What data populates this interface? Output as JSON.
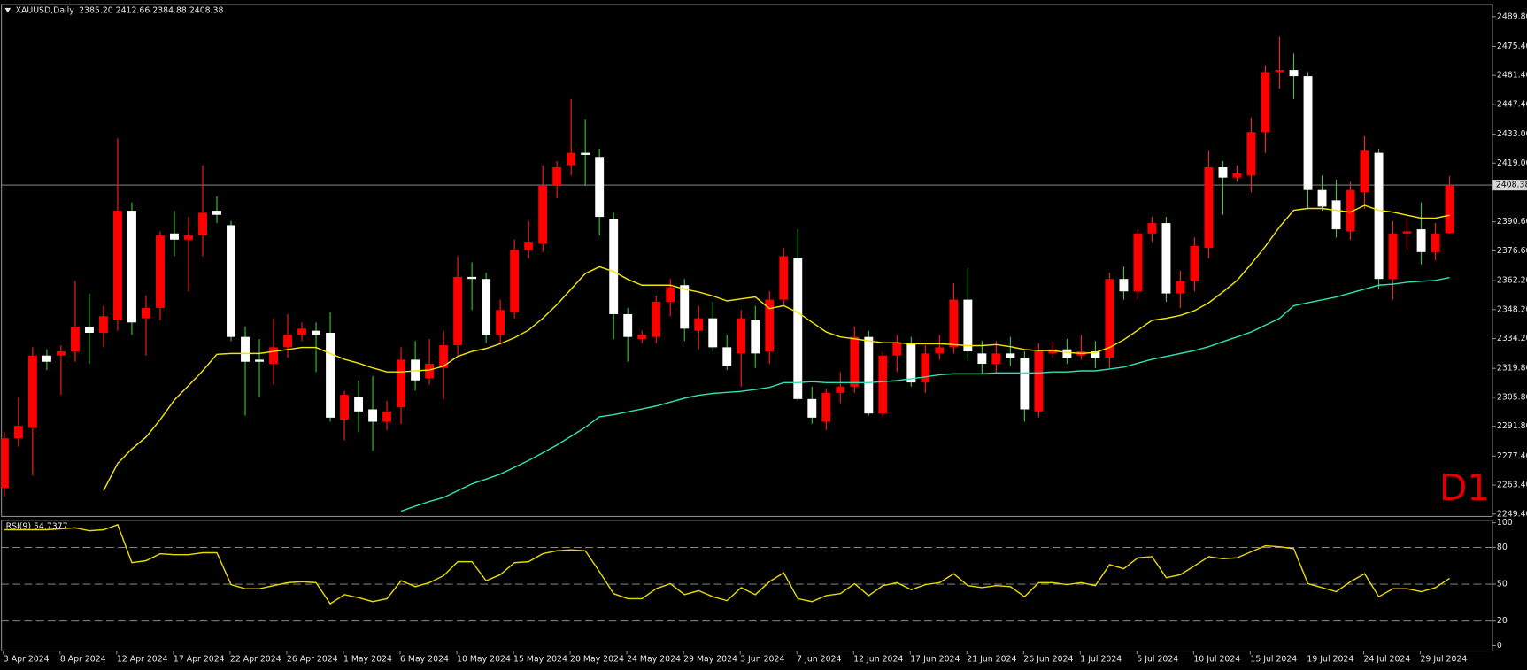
{
  "chart_data": [
    {
      "type": "candlestick",
      "title": "XAUUSD,Daily",
      "subtitle": "2385.20 2412.66 2384.88 2408.38",
      "watermark": "D1",
      "categories": [
        "3 Apr 2024",
        null,
        null,
        null,
        "8 Apr 2024",
        null,
        null,
        null,
        "12 Apr 2024",
        null,
        null,
        null,
        "17 Apr 2024",
        null,
        null,
        null,
        "22 Apr 2024",
        null,
        null,
        null,
        "26 Apr 2024",
        null,
        null,
        null,
        "1 May 2024",
        null,
        null,
        null,
        "6 May 2024",
        null,
        null,
        null,
        "10 May 2024",
        null,
        null,
        null,
        "15 May 2024",
        null,
        null,
        null,
        "20 May 2024",
        null,
        null,
        null,
        "24 May 2024",
        null,
        null,
        null,
        "29 May 2024",
        null,
        null,
        null,
        "3 Jun 2024",
        null,
        null,
        null,
        "7 Jun 2024",
        null,
        null,
        null,
        "12 Jun 2024",
        null,
        null,
        null,
        "17 Jun 2024",
        null,
        null,
        null,
        "21 Jun 2024",
        null,
        null,
        null,
        "26 Jun 2024",
        null,
        null,
        null,
        "1 Jul 2024",
        null,
        null,
        null,
        "5 Jul 2024",
        null,
        null,
        null,
        "10 Jul 2024",
        null,
        null,
        null,
        "15 Jul 2024",
        null,
        null,
        null,
        "19 Jul 2024",
        null,
        null,
        null,
        "24 Jul 2024",
        null,
        null,
        null,
        "29 Jul 2024",
        null,
        null
      ],
      "open": [
        2262,
        2286,
        2291,
        2326,
        2326,
        2328,
        2340,
        2337,
        2343,
        2396,
        2344,
        2349,
        2385,
        2382,
        2384,
        2396,
        2389,
        2335,
        2324,
        2322,
        2330,
        2336,
        2338,
        2337,
        2295,
        2306,
        2300,
        2294,
        2301,
        2324,
        2315,
        2320,
        2331,
        2364,
        2363,
        2336,
        2347,
        2377,
        2380,
        2408,
        2418,
        2424,
        2422,
        2392,
        2346,
        2334,
        2335,
        2352,
        2360,
        2338,
        2344,
        2330,
        2327,
        2343,
        2328,
        2353,
        2373,
        2305,
        2294,
        2308,
        2311,
        2335,
        2298,
        2326,
        2332,
        2313,
        2327,
        2330,
        2353,
        2327,
        2322,
        2327,
        2325,
        2299,
        2327,
        2329,
        2326,
        2328,
        2325,
        2363,
        2357,
        2385,
        2390,
        2356,
        2362,
        2378,
        2417,
        2412,
        2413,
        2434,
        2463,
        2464,
        2461,
        2406,
        2401,
        2386,
        2405,
        2424,
        2363,
        2385,
        2387,
        2376,
        2385.2
      ],
      "high": [
        2289,
        2306,
        2330,
        2329,
        2331,
        2362,
        2356,
        2350,
        2431,
        2400,
        2355,
        2386,
        2396,
        2393,
        2418,
        2403,
        2391,
        2340,
        2334,
        2344,
        2346,
        2342,
        2342,
        2347,
        2309,
        2314,
        2316,
        2304,
        2330,
        2333,
        2334,
        2338,
        2374,
        2371,
        2366,
        2353,
        2382,
        2391,
        2418,
        2420,
        2450,
        2440,
        2426,
        2395,
        2349,
        2338,
        2355,
        2363,
        2363,
        2350,
        2352,
        2336,
        2348,
        2350,
        2357,
        2378,
        2387,
        2311,
        2310,
        2318,
        2340,
        2338,
        2328,
        2336,
        2335,
        2331,
        2336,
        2361,
        2368,
        2333,
        2333,
        2335,
        2328,
        2332,
        2333,
        2334,
        2336,
        2333,
        2366,
        2369,
        2387,
        2393,
        2393,
        2367,
        2383,
        2425,
        2420,
        2418,
        2441,
        2466,
        2480,
        2472,
        2463,
        2413,
        2411,
        2410,
        2432,
        2426,
        2391,
        2392,
        2400,
        2390,
        2412.66
      ],
      "low": [
        2258,
        2282,
        2268,
        2319,
        2307,
        2323,
        2322,
        2330,
        2338,
        2336,
        2326,
        2343,
        2374,
        2357,
        2374,
        2390,
        2333,
        2297,
        2306,
        2312,
        2325,
        2333,
        2318,
        2294,
        2285,
        2289,
        2280,
        2290,
        2293,
        2309,
        2312,
        2305,
        2326,
        2348,
        2332,
        2332,
        2344,
        2373,
        2376,
        2402,
        2413,
        2408,
        2384,
        2334,
        2323,
        2332,
        2332,
        2345,
        2333,
        2329,
        2328,
        2319,
        2311,
        2320,
        2322,
        2350,
        2304,
        2293,
        2290,
        2303,
        2308,
        2297,
        2296,
        2318,
        2311,
        2308,
        2324,
        2327,
        2324,
        2317,
        2317,
        2321,
        2294,
        2296,
        2325,
        2322,
        2324,
        2320,
        2320,
        2353,
        2353,
        2381,
        2352,
        2349,
        2357,
        2373,
        2394,
        2410,
        2405,
        2424,
        2455,
        2450,
        2397,
        2396,
        2383,
        2382,
        2397,
        2358,
        2353,
        2377,
        2370,
        2372,
        2384.88
      ],
      "close": [
        2286,
        2292,
        2326,
        2323,
        2328,
        2340,
        2337,
        2345,
        2396,
        2342,
        2349,
        2384,
        2382,
        2384,
        2395,
        2394,
        2335,
        2323,
        2323,
        2330,
        2336,
        2339,
        2336,
        2296,
        2307,
        2299,
        2294,
        2299,
        2324,
        2314,
        2322,
        2331,
        2364,
        2363,
        2336,
        2348,
        2377,
        2381,
        2408,
        2417,
        2424,
        2423,
        2393,
        2346,
        2335,
        2336,
        2352,
        2359,
        2339,
        2344,
        2330,
        2321,
        2344,
        2327,
        2353,
        2374,
        2305,
        2296,
        2308,
        2311,
        2335,
        2298,
        2326,
        2332,
        2313,
        2327,
        2330,
        2353,
        2328,
        2322,
        2327,
        2325,
        2300,
        2328,
        2329,
        2325,
        2328,
        2325,
        2363,
        2357,
        2385,
        2390,
        2356,
        2362,
        2379,
        2417,
        2412,
        2414,
        2434,
        2463,
        2464,
        2461,
        2406,
        2398,
        2387,
        2406,
        2425,
        2363,
        2385,
        2386,
        2376,
        2385,
        2408.38
      ],
      "up_color": "#ff0000",
      "down_color": "#ffffff",
      "up_wick_color": "#ff2020",
      "down_wick_color": "#32cd32",
      "lines": [
        {
          "color": "#f2e600",
          "values": [
            null,
            null,
            null,
            null,
            null,
            null,
            null,
            2260.7,
            2273.9,
            2280.9,
            2286.6,
            2295.0,
            2304.5,
            2311.5,
            2318.6,
            2326.6,
            2327.0,
            2327.0,
            2327.0,
            2328.0,
            2328.9,
            2329.9,
            2329.9,
            2327.0,
            2324.2,
            2322.3,
            2320.0,
            2318.1,
            2318.1,
            2318.6,
            2319.0,
            2320.9,
            2325.6,
            2328.0,
            2329.4,
            2331.7,
            2334.6,
            2338.3,
            2344.0,
            2350.6,
            2358.1,
            2365.6,
            2368.9,
            2366.6,
            2362.8,
            2360.0,
            2360.0,
            2360.0,
            2358.1,
            2356.7,
            2354.8,
            2352.4,
            2353.4,
            2354.3,
            2348.7,
            2350.1,
            2346.8,
            2342.1,
            2337.4,
            2335.0,
            2334.1,
            2333.1,
            2332.2,
            2332.2,
            2331.7,
            2331.7,
            2331.7,
            2331.3,
            2330.8,
            2330.8,
            2331.3,
            2330.3,
            2328.9,
            2328.4,
            2328.4,
            2327.5,
            2327.0,
            2327.5,
            2329.9,
            2333.6,
            2338.3,
            2343.0,
            2344.0,
            2345.4,
            2347.7,
            2351.5,
            2356.7,
            2362.3,
            2370.3,
            2378.8,
            2388.2,
            2396.2,
            2397.1,
            2397.1,
            2396.2,
            2395.3,
            2398.6,
            2396.2,
            2395.3,
            2393.8,
            2392.4,
            2392.4,
            2393.8
          ]
        },
        {
          "color": "#2fe0b4",
          "values": [
            null,
            null,
            null,
            null,
            null,
            null,
            null,
            null,
            null,
            null,
            null,
            null,
            null,
            null,
            null,
            null,
            null,
            null,
            null,
            null,
            null,
            null,
            null,
            null,
            null,
            null,
            null,
            null,
            2250.8,
            2253.2,
            2255.5,
            2257.4,
            2260.7,
            2264.0,
            2266.3,
            2268.7,
            2272.0,
            2275.3,
            2279.0,
            2282.8,
            2287.0,
            2291.3,
            2296.4,
            2297.4,
            2298.8,
            2300.2,
            2301.6,
            2303.5,
            2305.4,
            2306.8,
            2307.7,
            2308.2,
            2308.7,
            2309.6,
            2310.6,
            2312.9,
            2312.9,
            2313.4,
            2312.9,
            2312.9,
            2312.9,
            2312.9,
            2313.4,
            2313.9,
            2314.8,
            2315.7,
            2316.7,
            2317.2,
            2317.2,
            2317.2,
            2317.6,
            2317.6,
            2317.6,
            2317.6,
            2318.1,
            2318.1,
            2318.6,
            2318.6,
            2319.5,
            2320.4,
            2322.3,
            2324.2,
            2325.6,
            2327.0,
            2328.4,
            2330.3,
            2332.7,
            2335.0,
            2337.4,
            2340.7,
            2344.0,
            2350.1,
            2351.5,
            2352.9,
            2354.3,
            2356.2,
            2358.1,
            2360.0,
            2360.5,
            2361.4,
            2361.9,
            2362.3,
            2363.7
          ]
        }
      ],
      "last_price": 2408.38,
      "ylim": [
        2248.5,
        2495.0
      ],
      "yticks": [
        {
          "value": 2249.4,
          "label": "2249.40"
        },
        {
          "value": 2263.4,
          "label": "2263.40"
        },
        {
          "value": 2277.4,
          "label": "2277.40"
        },
        {
          "value": 2291.8,
          "label": "2291.80"
        },
        {
          "value": 2305.8,
          "label": "2305.80"
        },
        {
          "value": 2319.8,
          "label": "2319.80"
        },
        {
          "value": 2334.2,
          "label": "2334.20"
        },
        {
          "value": 2348.2,
          "label": "2348.20"
        },
        {
          "value": 2362.2,
          "label": "2362.20"
        },
        {
          "value": 2376.6,
          "label": "2376.60"
        },
        {
          "value": 2390.6,
          "label": "2390.60"
        },
        {
          "value": 2419.0,
          "label": "2419.00"
        },
        {
          "value": 2433.0,
          "label": "2433.00"
        },
        {
          "value": 2447.4,
          "label": "2447.40"
        },
        {
          "value": 2461.4,
          "label": "2461.40"
        },
        {
          "value": 2475.4,
          "label": "2475.40"
        },
        {
          "value": 2489.8,
          "label": "2489.80"
        }
      ]
    },
    {
      "type": "line",
      "title": "RSI(9) 54.7377",
      "color": "#e6d800",
      "values": [
        94.3,
        94.3,
        94.3,
        94.3,
        95.1,
        95.9,
        93.5,
        94.3,
        98.4,
        67.5,
        69.1,
        74.8,
        74.0,
        74.0,
        75.6,
        75.6,
        49.6,
        46.3,
        46.3,
        48.8,
        51.2,
        52.0,
        51.2,
        34.1,
        41.5,
        39.0,
        35.8,
        38.2,
        52.8,
        48.0,
        51.2,
        56.9,
        68.3,
        68.3,
        52.8,
        57.7,
        67.5,
        68.3,
        74.8,
        77.2,
        78.0,
        77.2,
        60.2,
        42.3,
        38.2,
        38.2,
        46.3,
        50.4,
        41.5,
        44.7,
        39.8,
        36.6,
        47.2,
        41.5,
        52.0,
        59.3,
        38.2,
        35.8,
        40.7,
        42.3,
        50.4,
        40.7,
        48.8,
        51.2,
        45.5,
        49.6,
        51.2,
        58.5,
        48.8,
        47.2,
        48.8,
        48.0,
        39.8,
        51.2,
        51.2,
        49.6,
        51.2,
        48.8,
        65.9,
        62.6,
        71.5,
        72.4,
        55.3,
        57.7,
        65.0,
        72.4,
        70.7,
        71.5,
        76.4,
        81.3,
        80.5,
        78.9,
        50.4,
        47.2,
        43.9,
        52.0,
        58.5,
        39.8,
        46.3,
        46.3,
        43.9,
        47.2,
        54.7377
      ],
      "ylim": [
        0,
        100
      ],
      "yticks": [
        0,
        20,
        50,
        80,
        100
      ],
      "levels": [
        20,
        50,
        80
      ]
    }
  ]
}
